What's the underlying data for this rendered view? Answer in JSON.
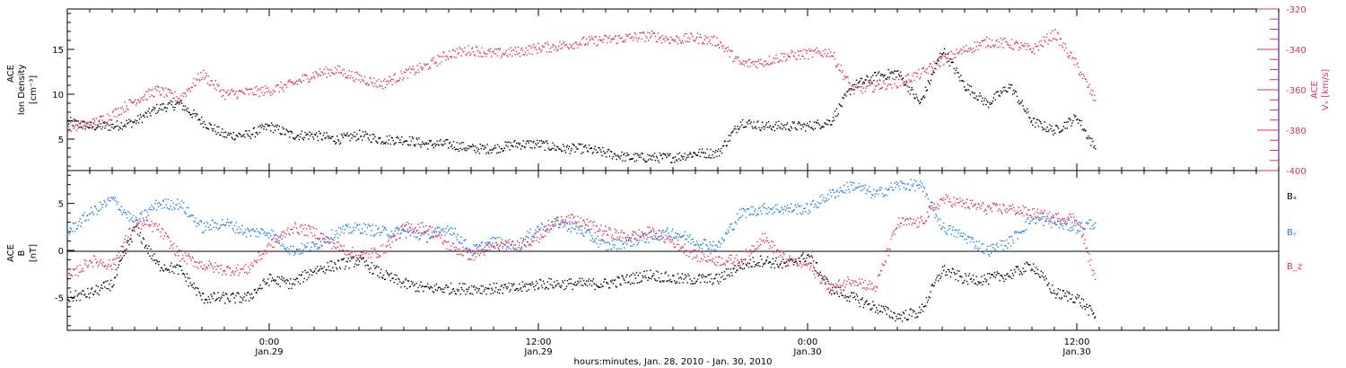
{
  "colors": {
    "black": "#000000",
    "red": "#e0305e",
    "blue": "#1f7fe0",
    "axis_purple": "#5a2a8a"
  },
  "xaxis": {
    "title": "hours:minutes, Jan. 28, 2010 - Jan. 30, 2010",
    "range_hours": [
      0,
      54
    ],
    "ticks": [
      {
        "h": 9,
        "time": "0:00",
        "date": "Jan.29"
      },
      {
        "h": 21,
        "time": "12:00",
        "date": "Jan.29"
      },
      {
        "h": 33,
        "time": "0:00",
        "date": "Jan.30"
      },
      {
        "h": 45,
        "time": "12:00",
        "date": "Jan.30"
      }
    ]
  },
  "panel1": {
    "left_label": [
      "ACE",
      "Ion Density",
      "[cm⁻³]"
    ],
    "right_label": [
      "ACE",
      "Vₓ [km/s]"
    ],
    "yticks_left": [
      "5",
      "10",
      "15"
    ],
    "yticks_right": [
      "-320",
      "-340",
      "-360",
      "-380",
      "-400"
    ]
  },
  "panel2": {
    "left_label": [
      "ACE",
      "B",
      "[nT]"
    ],
    "yticks": [
      "5",
      "0",
      "-5"
    ],
    "legend": [
      {
        "name": "Bₓ",
        "color": "#000000"
      },
      {
        "name": "Bᵧ",
        "color": "#1f7fe0"
      },
      {
        "name": "B_z",
        "color": "#e0305e"
      }
    ]
  },
  "chart_data": [
    {
      "type": "scatter",
      "title": "",
      "xlabel": "hours:minutes, Jan. 28, 2010 - Jan. 30, 2010",
      "ylabel": "ACE Ion Density [cm^-3]",
      "ylabel_right": "ACE Vx [km/s]",
      "ylim": [
        1.5,
        19.5
      ],
      "ylim_right": [
        -400,
        -320
      ],
      "x_hours": [
        0,
        1,
        2,
        3,
        4,
        5,
        6,
        7,
        8,
        9,
        10,
        11,
        12,
        13,
        14,
        15,
        16,
        17,
        18,
        19,
        20,
        21,
        22,
        23,
        24,
        25,
        26,
        27,
        28,
        29,
        30,
        31,
        32,
        33,
        34,
        35,
        36,
        37,
        38,
        39,
        40,
        41,
        42,
        43,
        44,
        45,
        45.8
      ],
      "series": [
        {
          "name": "Ion Density",
          "axis": "left",
          "color": "#000000",
          "values": [
            7,
            6.5,
            6.5,
            7,
            8.5,
            9,
            7,
            5.5,
            5.5,
            6.5,
            5.5,
            5.5,
            5,
            5.5,
            5,
            5,
            4.5,
            4.5,
            4,
            4,
            4.5,
            4.5,
            4,
            4,
            3.5,
            3,
            3,
            3,
            3.5,
            3.5,
            7,
            6.5,
            6.5,
            6.5,
            7,
            11,
            12,
            12.5,
            9,
            15,
            11,
            9,
            11,
            7,
            6,
            7.5,
            4
          ]
        },
        {
          "name": "Vx",
          "axis": "right",
          "color": "#e0305e",
          "values": [
            -378,
            -377,
            -372,
            -365,
            -360,
            -364,
            -352,
            -362,
            -361,
            -360,
            -357,
            -352,
            -350,
            -354,
            -357,
            -352,
            -348,
            -342,
            -340,
            -342,
            -341,
            -339,
            -338,
            -336,
            -335,
            -334,
            -333,
            -335,
            -334,
            -336,
            -347,
            -346,
            -343,
            -342,
            -341,
            -360,
            -358,
            -356,
            -352,
            -345,
            -340,
            -336,
            -337,
            -340,
            -332,
            -348,
            -365
          ]
        }
      ]
    },
    {
      "type": "scatter",
      "title": "",
      "xlabel": "hours:minutes, Jan. 28, 2010 - Jan. 30, 2010",
      "ylabel": "ACE B [nT]",
      "ylim": [
        -8.5,
        8.5
      ],
      "x_hours": [
        0,
        1,
        2,
        3,
        4,
        5,
        6,
        7,
        8,
        9,
        10,
        11,
        12,
        13,
        14,
        15,
        16,
        17,
        18,
        19,
        20,
        21,
        22,
        23,
        24,
        25,
        26,
        27,
        28,
        29,
        30,
        31,
        32,
        33,
        34,
        35,
        36,
        37,
        38,
        39,
        40,
        41,
        42,
        43,
        44,
        45,
        45.8
      ],
      "series": [
        {
          "name": "Bx",
          "color": "#000000",
          "values": [
            -5,
            -4.5,
            -3.5,
            2.5,
            -1.5,
            -2,
            -5,
            -5,
            -5,
            -3,
            -3.5,
            -2,
            -1.5,
            -1,
            -2.5,
            -3.5,
            -4,
            -4,
            -4,
            -4,
            -4,
            -3.5,
            -3.5,
            -3.5,
            -3.5,
            -3,
            -2.5,
            -3,
            -3,
            -3,
            -1.5,
            -1,
            -1.5,
            -0.5,
            -4,
            -5,
            -6,
            -7,
            -6.5,
            -2,
            -3,
            -3,
            -2.5,
            -1.5,
            -4.5,
            -5,
            -7
          ]
        },
        {
          "name": "By",
          "color": "#1f7fe0",
          "values": [
            2,
            4,
            5.5,
            3,
            5,
            5,
            2.5,
            3,
            2,
            2,
            0,
            0.5,
            2,
            2.5,
            2,
            2,
            1.5,
            2.5,
            0,
            1,
            0.5,
            2.5,
            3,
            2,
            0.5,
            1,
            1.5,
            2,
            1,
            0.5,
            4,
            4.5,
            4.5,
            4.5,
            6,
            7,
            6,
            7,
            7,
            2.5,
            1.5,
            0,
            1,
            3.5,
            3,
            2.5,
            3
          ]
        },
        {
          "name": "Bz",
          "color": "#e0305e",
          "values": [
            -3,
            -1,
            -1.5,
            3,
            2.5,
            -0.5,
            -1.5,
            -2,
            -2,
            0.5,
            2.5,
            2,
            0.5,
            -0.5,
            0,
            2.5,
            2.5,
            0.5,
            -0.5,
            0.5,
            0.5,
            1.5,
            3.5,
            3,
            2,
            1.5,
            2,
            1,
            -0.5,
            -1,
            -1,
            1.5,
            -1,
            -1.5,
            -4,
            -3,
            -4,
            3,
            3,
            5.5,
            5,
            4.5,
            4.5,
            4,
            3.5,
            3.5,
            -3
          ]
        }
      ]
    }
  ]
}
